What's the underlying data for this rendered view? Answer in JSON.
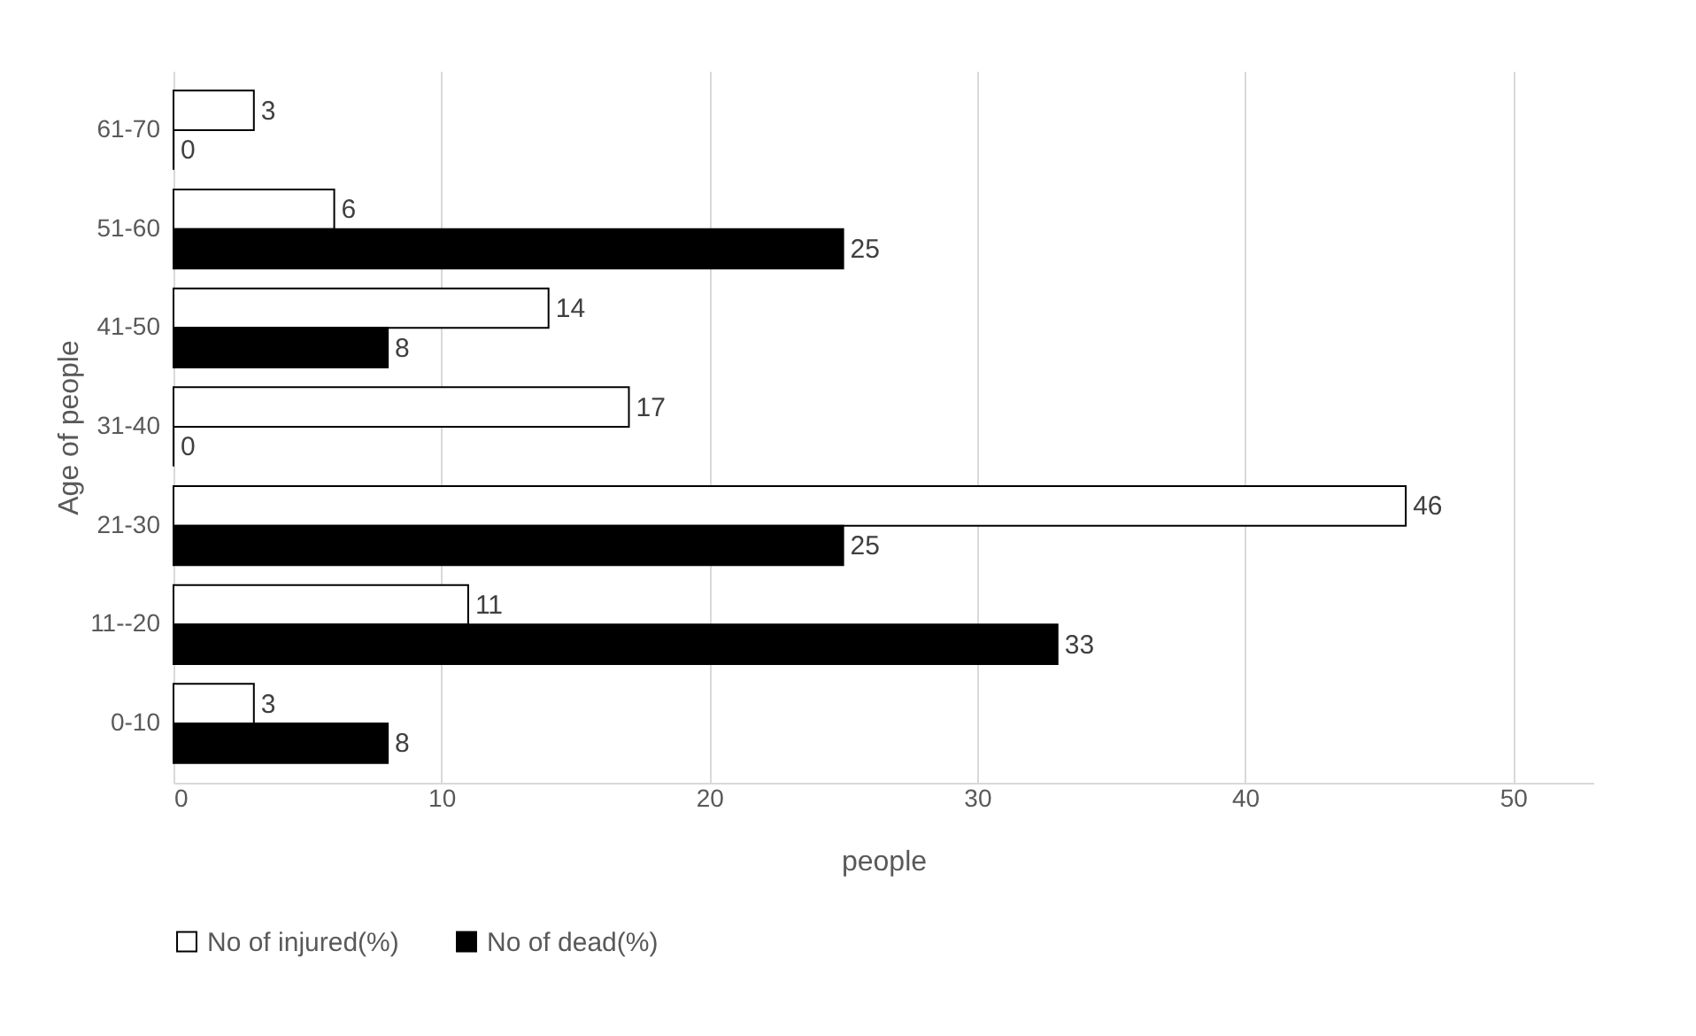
{
  "chart_data": {
    "type": "bar",
    "orientation": "horizontal",
    "xlabel": "people",
    "ylabel": "Age of people",
    "categories": [
      "61-70",
      "51-60",
      "41-50",
      "31-40",
      "21-30",
      "11--20",
      "0-10"
    ],
    "series": [
      {
        "name": "No of injured(%)",
        "color": "#ffffff",
        "values": [
          3,
          6,
          14,
          17,
          46,
          11,
          3
        ]
      },
      {
        "name": "No of dead(%)",
        "color": "#000000",
        "values": [
          0,
          25,
          8,
          0,
          25,
          33,
          8
        ]
      }
    ],
    "xlim": [
      0,
      53
    ],
    "xticks": [
      0,
      10,
      20,
      30,
      40,
      50
    ],
    "grid": "x",
    "legend": "bottom",
    "data_labels": true
  }
}
